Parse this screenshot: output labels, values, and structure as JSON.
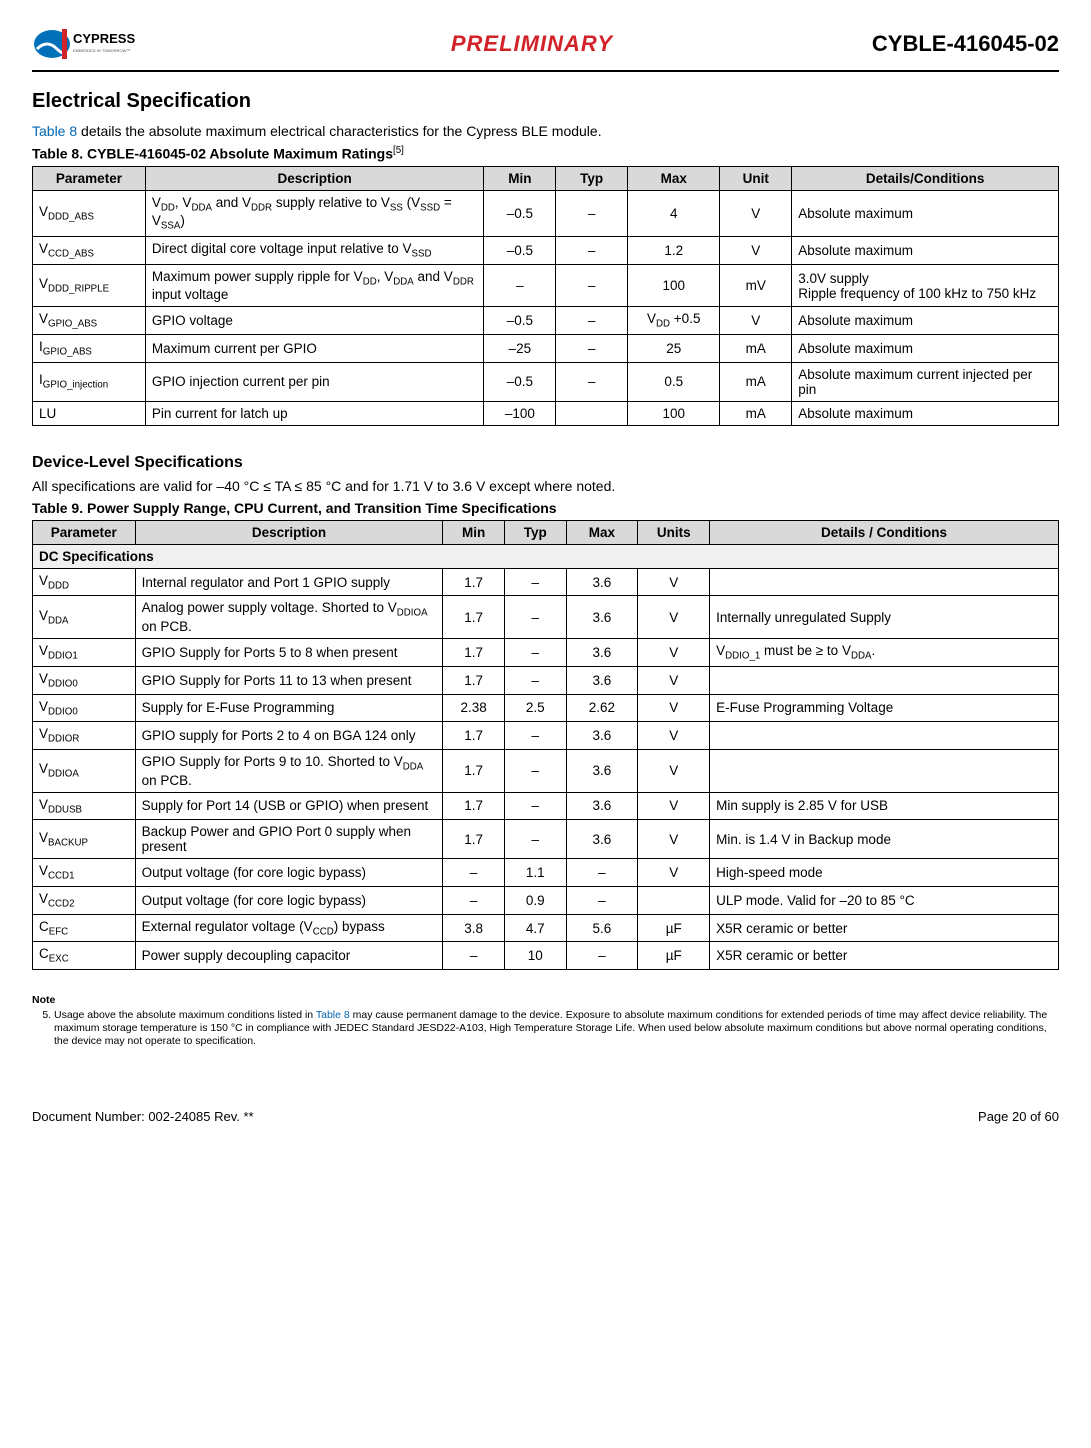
{
  "header": {
    "logo_text_main": "CYPRESS",
    "logo_text_sub": "EMBEDDED IN TOMORROW™",
    "preliminary": "PRELIMINARY",
    "part_number": "CYBLE-416045-02"
  },
  "section1": {
    "title": "Electrical Specification",
    "intro_prefix": "Table 8",
    "intro_rest": " details the absolute maximum electrical characteristics for the Cypress BLE module.",
    "table_caption": "Table 8.  CYBLE-416045-02 Absolute Maximum Ratings",
    "table_ref": "[5]",
    "columns": [
      "Parameter",
      "Description",
      "Min",
      "Typ",
      "Max",
      "Unit",
      "Details/Conditions"
    ],
    "rows": [
      {
        "param_html": "V<sub>DDD_ABS</sub>",
        "desc_html": "V<sub>DD</sub>, V<sub>DDA</sub> and V<sub>DDR</sub> supply relative to V<sub>SS</sub> (V<sub>SSD</sub> = V<sub>SSA</sub>)",
        "min": "–0.5",
        "typ": "–",
        "max": "4",
        "unit": "V",
        "details": "Absolute maximum"
      },
      {
        "param_html": "V<sub>CCD_ABS</sub>",
        "desc_html": "Direct digital core voltage input relative to V<sub>SSD</sub>",
        "min": "–0.5",
        "typ": "–",
        "max": "1.2",
        "unit": "V",
        "details": "Absolute maximum"
      },
      {
        "param_html": "V<sub>DDD_RIPPLE</sub>",
        "desc_html": "Maximum power supply ripple for V<sub>DD</sub>, V<sub>DDA</sub> and V<sub>DDR</sub> input voltage",
        "min": "–",
        "typ": "–",
        "max": "100",
        "unit": "mV",
        "details": "3.0V supply\nRipple frequency of 100 kHz to 750 kHz"
      },
      {
        "param_html": "V<sub>GPIO_ABS</sub>",
        "desc_html": "GPIO voltage",
        "min": "–0.5",
        "typ": "–",
        "max_html": "V<sub>DD</sub> +0.5",
        "unit": "V",
        "details": "Absolute maximum"
      },
      {
        "param_html": "I<sub>GPIO_ABS</sub>",
        "desc_html": "Maximum current per GPIO",
        "min": "–25",
        "typ": "–",
        "max": "25",
        "unit": "mA",
        "details": "Absolute maximum"
      },
      {
        "param_html": "I<sub>GPIO_injection</sub>",
        "desc_html": "GPIO injection current per pin",
        "min": "–0.5",
        "typ": "–",
        "max": "0.5",
        "unit": "mA",
        "details": "Absolute maximum current injected per pin"
      },
      {
        "param_html": "LU",
        "desc_html": "Pin current for latch up",
        "min": "–100",
        "typ": "",
        "max": "100",
        "unit": "mA",
        "details": "Absolute maximum"
      }
    ]
  },
  "section2": {
    "title": "Device-Level Specifications",
    "intro": "All specifications are valid for –40 °C ≤ TA ≤ 85 °C and for 1.71 V to 3.6 V except where noted.",
    "table_caption": "Table 9.  Power Supply Range, CPU Current, and Transition Time Specifications",
    "columns": [
      "Parameter",
      "Description",
      "Min",
      "Typ",
      "Max",
      "Units",
      "Details / Conditions"
    ],
    "section_row": "DC Specifications",
    "rows": [
      {
        "param_html": "V<sub>DDD</sub>",
        "desc_html": "Internal regulator and Port 1 GPIO supply",
        "min": "1.7",
        "typ": "–",
        "max": "3.6",
        "unit": "V",
        "details": ""
      },
      {
        "param_html": "V<sub>DDA</sub>",
        "desc_html": "Analog power supply voltage. Shorted to V<sub>DDIOA</sub> on PCB.",
        "min": "1.7",
        "typ": "–",
        "max": "3.6",
        "unit": "V",
        "details": "Internally unregulated Supply"
      },
      {
        "param_html": "V<sub>DDIO1</sub>",
        "desc_html": "GPIO Supply for Ports 5 to 8 when present",
        "min": "1.7",
        "typ": "–",
        "max": "3.6",
        "unit": "V",
        "details_html": "V<sub>DDIO_1</sub> must be ≥ to V<sub>DDA</sub>."
      },
      {
        "param_html": "V<sub>DDIO0</sub>",
        "desc_html": "GPIO Supply for Ports 11 to 13 when present",
        "min": "1.7",
        "typ": "–",
        "max": "3.6",
        "unit": "V",
        "details": ""
      },
      {
        "param_html": "V<sub>DDIO0</sub>",
        "desc_html": "Supply for E-Fuse Programming",
        "min": "2.38",
        "typ": "2.5",
        "max": "2.62",
        "unit": "V",
        "details": "E-Fuse Programming Voltage"
      },
      {
        "param_html": "V<sub>DDIOR</sub>",
        "desc_html": "GPIO supply for Ports 2 to 4 on BGA 124 only",
        "min": "1.7",
        "typ": "–",
        "max": "3.6",
        "unit": "V",
        "details": ""
      },
      {
        "param_html": "V<sub>DDIOA</sub>",
        "desc_html": "GPIO Supply for Ports 9 to 10. Shorted to V<sub>DDA</sub> on PCB.",
        "min": "1.7",
        "typ": "–",
        "max": "3.6",
        "unit": "V",
        "details": ""
      },
      {
        "param_html": "V<sub>DDUSB</sub>",
        "desc_html": "Supply for Port 14 (USB or GPIO) when present",
        "min": "1.7",
        "typ": "–",
        "max": "3.6",
        "unit": "V",
        "details": "Min supply is 2.85 V for USB"
      },
      {
        "param_html": "V<sub>BACKUP</sub>",
        "desc_html": "Backup Power and GPIO Port 0 supply when present",
        "min": "1.7",
        "typ": "–",
        "max": "3.6",
        "unit": "V",
        "details": "Min. is 1.4 V in Backup mode"
      },
      {
        "param_html": "V<sub>CCD1</sub>",
        "desc_html": "Output voltage (for core logic bypass)",
        "min": "–",
        "typ": "1.1",
        "max": "–",
        "unit": "V",
        "details": "High-speed mode"
      },
      {
        "param_html": "V<sub>CCD2</sub>",
        "desc_html": "Output voltage (for core logic bypass)",
        "min": "–",
        "typ": "0.9",
        "max": "–",
        "unit": "",
        "details": "ULP mode. Valid for –20 to 85 °C"
      },
      {
        "param_html": "C<sub>EFC</sub>",
        "desc_html": "External regulator voltage (V<sub>CCD</sub>) bypass",
        "min": "3.8",
        "typ": "4.7",
        "max": "5.6",
        "unit": "µF",
        "details": "X5R ceramic or better"
      },
      {
        "param_html": "C<sub>EXC</sub>",
        "desc_html": "Power supply decoupling capacitor",
        "min": "–",
        "typ": "10",
        "max": "–",
        "unit": "µF",
        "details": "X5R ceramic or better"
      }
    ]
  },
  "note": {
    "label": "Note",
    "num": "5.",
    "text_prefix": "Usage above the absolute maximum conditions listed in ",
    "link": "Table 8",
    "text_rest": " may cause permanent damage to the device. Exposure to absolute maximum conditions for extended periods of time may affect device reliability. The maximum storage temperature is 150 °C in compliance with JEDEC Standard JESD22-A103, High Temperature Storage Life. When used below absolute maximum conditions but above normal operating conditions, the device may not operate to specification."
  },
  "footer": {
    "doc": "Document Number: 002-24085 Rev. **",
    "page": "Page 20 of 60"
  }
}
